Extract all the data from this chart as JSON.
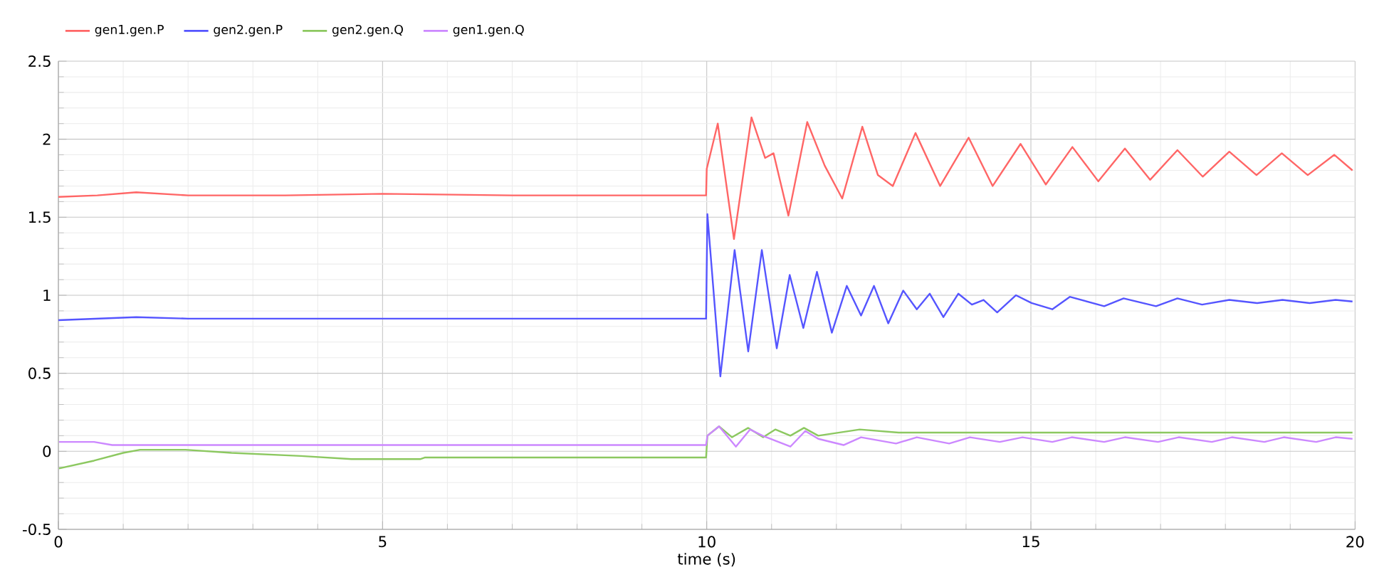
{
  "chart_data": {
    "type": "line",
    "xlabel": "time (s)",
    "xlim": [
      0,
      20
    ],
    "ylim": [
      -0.5,
      2.5
    ],
    "xticks": [
      0,
      5,
      10,
      15,
      20
    ],
    "yticks": [
      -0.5,
      0,
      0.5,
      1,
      1.5,
      2,
      2.5
    ],
    "grid": true,
    "legend": "top left",
    "line_style": "solid",
    "series": [
      {
        "name": "gen1.gen.P",
        "color": "#ff6666",
        "x": [
          0,
          0.6,
          1.2,
          2,
          3.5,
          5,
          7,
          9.99,
          10,
          10.17,
          10.42,
          10.69,
          10.9,
          11.03,
          11.26,
          11.55,
          11.82,
          12.09,
          12.4,
          12.64,
          12.87,
          13.22,
          13.6,
          14.04,
          14.41,
          14.84,
          15.23,
          15.64,
          16.04,
          16.45,
          16.84,
          17.26,
          17.65,
          18.06,
          18.48,
          18.87,
          19.27,
          19.68,
          19.96
        ],
        "values": [
          1.63,
          1.64,
          1.66,
          1.64,
          1.64,
          1.65,
          1.64,
          1.64,
          1.81,
          2.1,
          1.36,
          2.14,
          1.88,
          1.91,
          1.51,
          2.11,
          1.83,
          1.62,
          2.08,
          1.77,
          1.7,
          2.04,
          1.7,
          2.01,
          1.7,
          1.97,
          1.71,
          1.95,
          1.73,
          1.94,
          1.74,
          1.93,
          1.76,
          1.92,
          1.77,
          1.91,
          1.77,
          1.9,
          1.8
        ]
      },
      {
        "name": "gen2.gen.P",
        "color": "#5555ff",
        "x": [
          0,
          1.2,
          2,
          9.99,
          10.01,
          10.21,
          10.43,
          10.64,
          10.85,
          11.08,
          11.28,
          11.49,
          11.7,
          11.93,
          12.16,
          12.38,
          12.58,
          12.8,
          13.03,
          13.24,
          13.44,
          13.65,
          13.88,
          14.09,
          14.27,
          14.48,
          14.77,
          15.01,
          15.33,
          15.6,
          16.13,
          16.43,
          16.93,
          17.26,
          17.64,
          18.06,
          18.49,
          18.88,
          19.3,
          19.7,
          19.96
        ],
        "values": [
          0.84,
          0.86,
          0.85,
          0.85,
          1.52,
          0.48,
          1.29,
          0.64,
          1.29,
          0.66,
          1.13,
          0.79,
          1.15,
          0.76,
          1.06,
          0.87,
          1.06,
          0.82,
          1.03,
          0.91,
          1.01,
          0.86,
          1.01,
          0.94,
          0.97,
          0.89,
          1.0,
          0.95,
          0.91,
          0.99,
          0.93,
          0.98,
          0.93,
          0.98,
          0.94,
          0.97,
          0.95,
          0.97,
          0.95,
          0.97,
          0.96
        ]
      },
      {
        "name": "gen2.gen.Q",
        "color": "#8cc860",
        "x": [
          0.01,
          0.55,
          1.0,
          1.26,
          1.96,
          2.67,
          3.74,
          4.52,
          5.58,
          5.65,
          9.99,
          10.01,
          10.19,
          10.39,
          10.64,
          10.87,
          11.06,
          11.29,
          11.5,
          11.72,
          12.36,
          12.96,
          14,
          19.96
        ],
        "values": [
          -0.11,
          -0.06,
          -0.01,
          0.01,
          0.01,
          -0.01,
          -0.03,
          -0.05,
          -0.05,
          -0.04,
          -0.04,
          0.1,
          0.16,
          0.09,
          0.15,
          0.09,
          0.14,
          0.1,
          0.15,
          0.1,
          0.14,
          0.12,
          0.12,
          0.12
        ]
      },
      {
        "name": "gen1.gen.Q",
        "color": "#cc88ff",
        "x": [
          0.01,
          0.55,
          0.83,
          9.99,
          10.01,
          10.19,
          10.45,
          10.67,
          10.86,
          11.29,
          11.52,
          11.72,
          12.11,
          12.38,
          12.92,
          13.24,
          13.74,
          14.06,
          14.52,
          14.87,
          15.33,
          15.63,
          16.13,
          16.45,
          16.96,
          17.28,
          17.79,
          18.1,
          18.6,
          18.9,
          19.4,
          19.7,
          19.96
        ],
        "values": [
          0.06,
          0.06,
          0.04,
          0.04,
          0.1,
          0.16,
          0.03,
          0.14,
          0.1,
          0.03,
          0.13,
          0.08,
          0.04,
          0.09,
          0.05,
          0.09,
          0.05,
          0.09,
          0.06,
          0.09,
          0.06,
          0.09,
          0.06,
          0.09,
          0.06,
          0.09,
          0.06,
          0.09,
          0.06,
          0.09,
          0.06,
          0.09,
          0.08
        ]
      }
    ]
  }
}
